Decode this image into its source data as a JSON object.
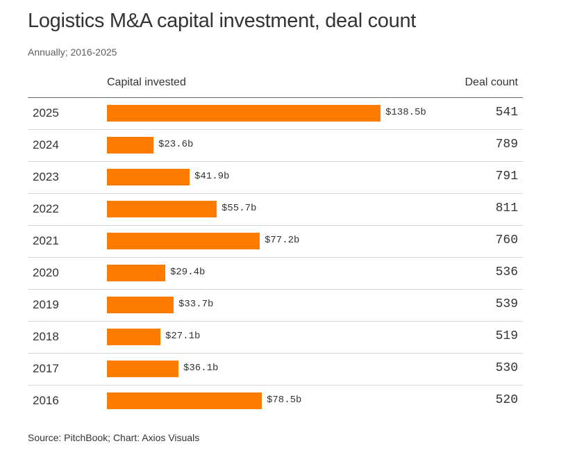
{
  "header": {
    "title": "Logistics M&A capital investment, deal count",
    "subtitle": "Annually; 2016-2025"
  },
  "columns": {
    "capital": "Capital invested",
    "deals": "Deal count"
  },
  "footer": {
    "source": "Source: PitchBook; Chart: Axios Visuals"
  },
  "colors": {
    "bar": "#ff7b00"
  },
  "chart_data": {
    "type": "bar",
    "orientation": "horizontal",
    "title": "Logistics M&A capital investment, deal count",
    "subtitle": "Annually; 2016-2025",
    "xlabel": "Capital invested",
    "ylabel": "",
    "categories": [
      "2025",
      "2024",
      "2023",
      "2022",
      "2021",
      "2020",
      "2019",
      "2018",
      "2017",
      "2016"
    ],
    "series": [
      {
        "name": "Capital invested",
        "unit": "$b",
        "values": [
          138.5,
          23.6,
          41.9,
          55.7,
          77.2,
          29.4,
          33.7,
          27.1,
          36.1,
          78.5
        ],
        "labels": [
          "$138.5b",
          "$23.6b",
          "$41.9b",
          "$55.7b",
          "$77.2b",
          "$29.4b",
          "$33.7b",
          "$27.1b",
          "$36.1b",
          "$78.5b"
        ]
      },
      {
        "name": "Deal count",
        "values": [
          541,
          789,
          791,
          811,
          760,
          536,
          539,
          519,
          530,
          520
        ]
      }
    ],
    "xlim": [
      0,
      138.5
    ],
    "grid": false,
    "legend": "none",
    "source": "Source: PitchBook; Chart: Axios Visuals"
  }
}
